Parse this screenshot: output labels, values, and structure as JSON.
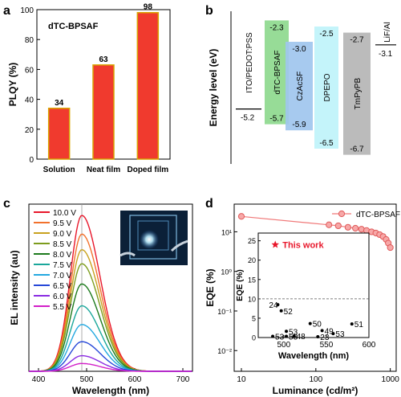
{
  "chart_data": [
    {
      "panel": "a",
      "type": "bar",
      "title": "dTC-BPSAF",
      "ylabel": "PLQY (%)",
      "categories": [
        "Solution",
        "Neat film",
        "Doped film"
      ],
      "values": [
        34,
        63,
        98
      ],
      "data_labels": [
        "34",
        "63",
        "98"
      ],
      "ylim": [
        0,
        100
      ],
      "yticks": [
        "0",
        "20",
        "40",
        "60",
        "80",
        "100"
      ],
      "grid": false,
      "bar_color": "#f03a2e",
      "bar_edge_color": "#d9a400"
    },
    {
      "panel": "b",
      "type": "bar",
      "ylabel": "Energy level (eV)",
      "layers": [
        {
          "name": "ITO/PEDOT:PSS",
          "level": -5.2,
          "label": "-5.2"
        },
        {
          "name": "dTC-BPSAF",
          "lumo": -2.3,
          "homo": -5.7,
          "lumo_label": "-2.3",
          "homo_label": "-5.7",
          "color": "#8ed98e"
        },
        {
          "name": "CzAcSF",
          "lumo": -3.0,
          "homo": -5.9,
          "lumo_label": "-3.0",
          "homo_label": "-5.9",
          "color": "#9fc6ee"
        },
        {
          "name": "DPEPO",
          "lumo": -2.5,
          "homo": -6.5,
          "lumo_label": "-2.5",
          "homo_label": "-6.5",
          "color": "#bff3fa"
        },
        {
          "name": "TmPyPB",
          "lumo": -2.7,
          "homo": -6.7,
          "lumo_label": "-2.7",
          "homo_label": "-6.7",
          "color": "#b5b5b5"
        },
        {
          "name": "LiF/Al",
          "level": -3.1,
          "label": "-3.1"
        }
      ]
    },
    {
      "panel": "c",
      "type": "line",
      "xlabel": "Wavelength (nm)",
      "ylabel": "EL intensity (au)",
      "xlim": [
        380,
        720
      ],
      "xticks": [
        "400",
        "500",
        "600",
        "700"
      ],
      "peak_nm": 490,
      "series": [
        {
          "name": "10.0 V",
          "rel_peak": 1.0,
          "color": "#e8172b"
        },
        {
          "name": "9.5 V",
          "rel_peak": 0.88,
          "color": "#f2712c"
        },
        {
          "name": "9.0 V",
          "rel_peak": 0.78,
          "color": "#c8a21e"
        },
        {
          "name": "8.5 V",
          "rel_peak": 0.69,
          "color": "#7d9c1d"
        },
        {
          "name": "8.0 V",
          "rel_peak": 0.56,
          "color": "#1c7a1c"
        },
        {
          "name": "7.5 V",
          "rel_peak": 0.42,
          "color": "#1aa79b"
        },
        {
          "name": "7.0 V",
          "rel_peak": 0.3,
          "color": "#24a8e0"
        },
        {
          "name": "6.5 V",
          "rel_peak": 0.19,
          "color": "#2748d8"
        },
        {
          "name": "6.0 V",
          "rel_peak": 0.1,
          "color": "#8a2be2"
        },
        {
          "name": "5.5 V",
          "rel_peak": 0.05,
          "color": "#d21fc8"
        }
      ],
      "legend_extra": "5.5 V"
    },
    {
      "panel": "d",
      "type": "line",
      "xlabel": "Luminance (cd/m²)",
      "ylabel": "EQE (%)",
      "xscale": "log",
      "yscale": "log",
      "xlim": [
        8,
        1200
      ],
      "ylim": [
        0.003,
        50
      ],
      "xticks": [
        "10",
        "100",
        "1000"
      ],
      "yticks": [
        "10⁻²",
        "10⁻¹",
        "10⁰",
        "10¹"
      ],
      "series": [
        {
          "name": "dTC-BPSAF",
          "color": "#f07878",
          "x": [
            10,
            150,
            200,
            270,
            340,
            410,
            480,
            560,
            640,
            720,
            800,
            880,
            940,
            1000
          ],
          "y": [
            24.5,
            15,
            14.2,
            13,
            12.3,
            11.6,
            10.8,
            10,
            9.3,
            8.5,
            7.6,
            6.4,
            5.2,
            4.0
          ]
        }
      ],
      "inset": {
        "type": "scatter",
        "xlabel": "Wavelength (nm)",
        "ylabel": "EQE (%)",
        "xlim": [
          470,
          600
        ],
        "ylim": [
          0,
          27
        ],
        "xticks": [
          "500",
          "550",
          "600"
        ],
        "yticks": [
          "0",
          "5",
          "10",
          "15",
          "20",
          "25"
        ],
        "reference_line_y": 10,
        "annotation": "This work",
        "star": {
          "x": 490,
          "y": 24
        },
        "points": [
          {
            "x": 493,
            "y": 8.5,
            "label": "24"
          },
          {
            "x": 497,
            "y": 6.9,
            "label": "52"
          },
          {
            "x": 503,
            "y": 1.6,
            "label": "53"
          },
          {
            "x": 487,
            "y": 0.3,
            "label": "53"
          },
          {
            "x": 503,
            "y": 0.3,
            "label": "53"
          },
          {
            "x": 512,
            "y": 0.4,
            "label": "48"
          },
          {
            "x": 531,
            "y": 3.6,
            "label": "50"
          },
          {
            "x": 545,
            "y": 1.8,
            "label": "49"
          },
          {
            "x": 558,
            "y": 1.0,
            "label": "53"
          },
          {
            "x": 540,
            "y": 0.2,
            "label": "23"
          },
          {
            "x": 580,
            "y": 3.5,
            "label": "51"
          }
        ]
      }
    }
  ],
  "panel_letters": [
    "a",
    "b",
    "c",
    "d"
  ]
}
